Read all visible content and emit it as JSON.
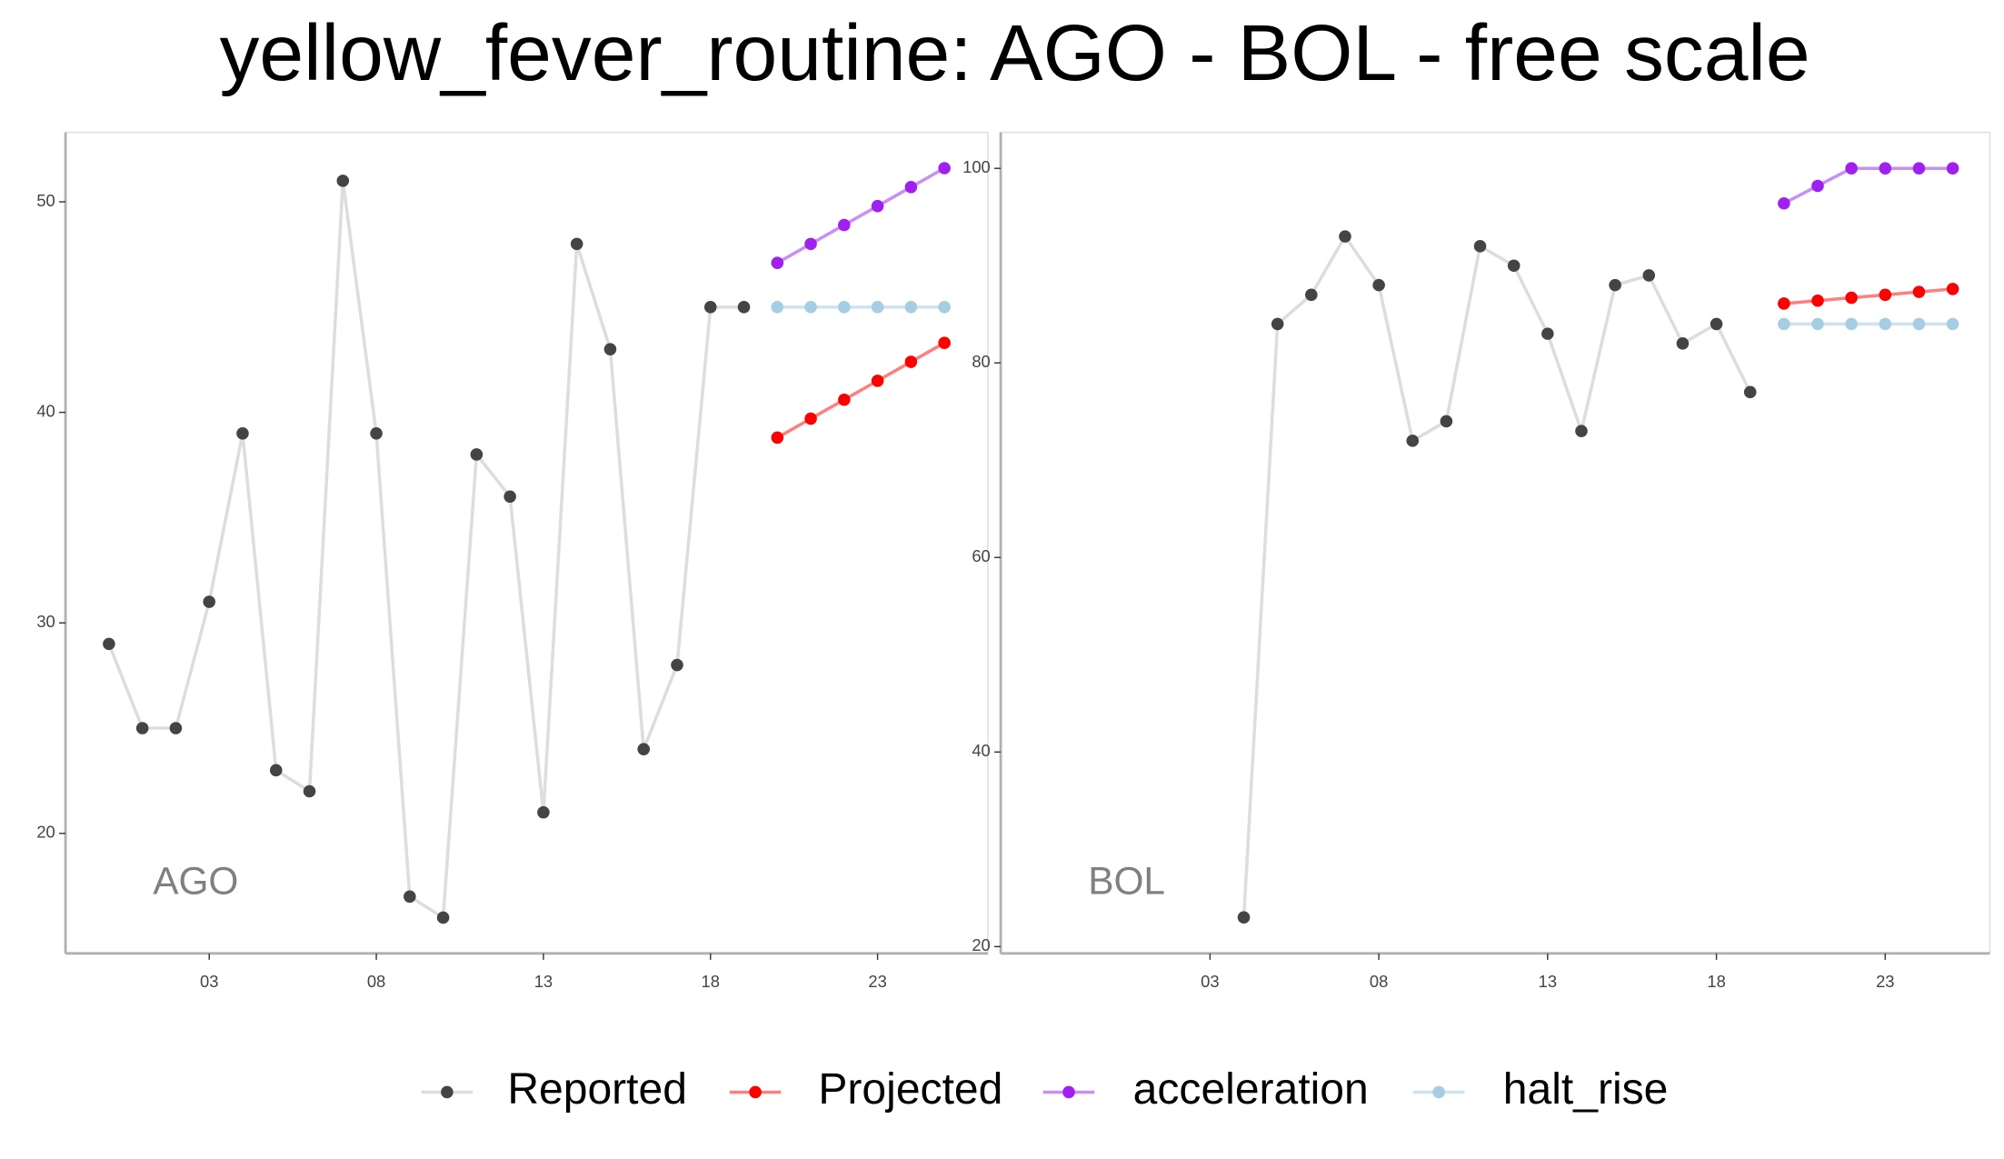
{
  "title": "yellow_fever_routine: AGO - BOL - free scale",
  "chart_data": [
    {
      "type": "line",
      "label": "AGO",
      "x": [
        0,
        1,
        2,
        3,
        4,
        5,
        6,
        7,
        8,
        9,
        10,
        11,
        12,
        13,
        14,
        15,
        16,
        17,
        18,
        19,
        20,
        21,
        22,
        23,
        24,
        25
      ],
      "xlim": [
        -1.3,
        26.3
      ],
      "xticks": [
        {
          "value": 3,
          "label": "03"
        },
        {
          "value": 8,
          "label": "08"
        },
        {
          "value": 13,
          "label": "13"
        },
        {
          "value": 18,
          "label": "18"
        },
        {
          "value": 23,
          "label": "23"
        }
      ],
      "ylim": [
        14.3,
        53.3
      ],
      "yticks": [
        20,
        30,
        40,
        50
      ],
      "series": [
        {
          "name": "Reported",
          "color": "#444444",
          "line_color": "#dddddd",
          "values": [
            29,
            25,
            25,
            31,
            39,
            23,
            22,
            51,
            39,
            17,
            16,
            38,
            36,
            21,
            48,
            43,
            24,
            28,
            45,
            45,
            null,
            null,
            null,
            null,
            null,
            null
          ]
        },
        {
          "name": "Projected",
          "color": "#ff0000",
          "line_color": "#ff7f7f",
          "values": [
            null,
            null,
            null,
            null,
            null,
            null,
            null,
            null,
            null,
            null,
            null,
            null,
            null,
            null,
            null,
            null,
            null,
            null,
            null,
            null,
            38.8,
            39.7,
            40.6,
            41.5,
            42.4,
            43.3
          ]
        },
        {
          "name": "acceleration",
          "color": "#a020f0",
          "line_color": "#c98ff5",
          "values": [
            null,
            null,
            null,
            null,
            null,
            null,
            null,
            null,
            null,
            null,
            null,
            null,
            null,
            null,
            null,
            null,
            null,
            null,
            null,
            null,
            47.1,
            48.0,
            48.9,
            49.8,
            50.7,
            51.6
          ]
        },
        {
          "name": "halt_rise",
          "color": "#a6cee3",
          "line_color": "#cde3ef",
          "values": [
            null,
            null,
            null,
            null,
            null,
            null,
            null,
            null,
            null,
            null,
            null,
            null,
            null,
            null,
            null,
            null,
            null,
            null,
            null,
            null,
            45,
            45,
            45,
            45,
            45,
            45
          ]
        }
      ]
    },
    {
      "type": "line",
      "label": "BOL",
      "x": [
        0,
        1,
        2,
        3,
        4,
        5,
        6,
        7,
        8,
        9,
        10,
        11,
        12,
        13,
        14,
        15,
        16,
        17,
        18,
        19,
        20,
        21,
        22,
        23,
        24,
        25
      ],
      "xlim": [
        -3.2,
        26.1
      ],
      "xticks": [
        {
          "value": 3,
          "label": "03"
        },
        {
          "value": 8,
          "label": "08"
        },
        {
          "value": 13,
          "label": "13"
        },
        {
          "value": 18,
          "label": "18"
        },
        {
          "value": 23,
          "label": "23"
        }
      ],
      "ylim": [
        19.3,
        103.7
      ],
      "yticks": [
        20,
        40,
        60,
        80,
        100
      ],
      "series": [
        {
          "name": "Reported",
          "color": "#444444",
          "line_color": "#dddddd",
          "values": [
            null,
            null,
            null,
            null,
            23,
            84,
            87,
            93,
            88,
            72,
            74,
            92,
            90,
            83,
            73,
            88,
            89,
            82,
            84,
            77,
            null,
            null,
            null,
            null,
            null,
            null
          ]
        },
        {
          "name": "Projected",
          "color": "#ff0000",
          "line_color": "#ff7f7f",
          "values": [
            null,
            null,
            null,
            null,
            null,
            null,
            null,
            null,
            null,
            null,
            null,
            null,
            null,
            null,
            null,
            null,
            null,
            null,
            null,
            null,
            86.1,
            86.4,
            86.7,
            87.0,
            87.3,
            87.6
          ]
        },
        {
          "name": "acceleration",
          "color": "#a020f0",
          "line_color": "#c98ff5",
          "values": [
            null,
            null,
            null,
            null,
            null,
            null,
            null,
            null,
            null,
            null,
            null,
            null,
            null,
            null,
            null,
            null,
            null,
            null,
            null,
            null,
            96.4,
            98.2,
            100,
            100,
            100,
            100
          ]
        },
        {
          "name": "halt_rise",
          "color": "#a6cee3",
          "line_color": "#cde3ef",
          "values": [
            null,
            null,
            null,
            null,
            null,
            null,
            null,
            null,
            null,
            null,
            null,
            null,
            null,
            null,
            null,
            null,
            null,
            null,
            null,
            null,
            84,
            84,
            84,
            84,
            84,
            84
          ]
        }
      ]
    }
  ]
}
